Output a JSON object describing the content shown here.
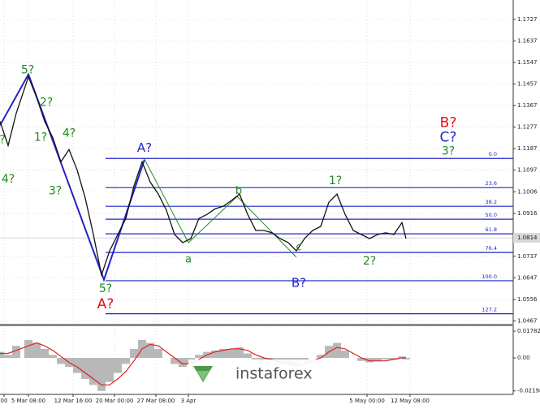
{
  "chart_data": {
    "type": "line",
    "color": "#111111",
    "x": [
      0,
      10,
      20,
      35,
      45,
      55,
      65,
      75,
      85,
      95,
      105,
      115,
      125,
      135,
      145,
      155,
      165,
      175,
      185,
      195,
      205,
      215,
      225,
      235,
      245,
      255,
      265,
      275,
      285,
      295,
      305,
      315,
      325,
      335,
      345,
      355,
      365,
      375,
      385,
      395,
      405,
      415,
      425,
      435,
      445,
      455,
      465,
      475,
      485,
      495,
      500
    ],
    "values": [
      1.1301,
      1.12,
      1.1335,
      1.1487,
      1.1402,
      1.1301,
      1.1233,
      1.1132,
      1.1183,
      1.1098,
      1.098,
      1.0828,
      1.0659,
      1.076,
      1.0828,
      1.0895,
      1.1031,
      1.1132,
      1.1047,
      1.0997,
      1.0929,
      1.0828,
      1.0794,
      1.0811,
      1.0895,
      1.0912,
      1.0936,
      1.0946,
      1.097,
      1.0997,
      1.0912,
      1.0845,
      1.0845,
      1.0835,
      1.0811,
      1.0794,
      1.076,
      1.0811,
      1.0845,
      1.0862,
      1.0963,
      1.0997,
      1.0912,
      1.0845,
      1.0828,
      1.0811,
      1.0828,
      1.0835,
      1.0828,
      1.0878,
      1.0811
    ],
    "xlim": [
      0,
      632
    ],
    "ylim": [
      1.0455,
      1.1808
    ],
    "yticks": [
      1.1727,
      1.1637,
      1.1547,
      1.1457,
      1.1367,
      1.1277,
      1.1187,
      1.1097,
      1.1006,
      1.0916,
      1.0737,
      1.0647,
      1.0556,
      1.0467
    ],
    "xticks": [
      {
        "value": 5,
        "label": "00"
      },
      {
        "value": 35,
        "label": "5 Mar 08:00"
      },
      {
        "value": 90,
        "label": "12 Mar 16:00"
      },
      {
        "value": 141,
        "label": "20 Mar 00:00"
      },
      {
        "value": 192,
        "label": "27 Mar 08:00"
      },
      {
        "value": 232,
        "label": "3 Apr"
      },
      {
        "value": 452,
        "label": "5 May 00:00"
      },
      {
        "value": 505,
        "label": "12 May 08:00"
      }
    ],
    "last_price": 1.0814,
    "fib_color": "#2424c8",
    "fib_start": 130,
    "fib_levels": [
      {
        "label": "0.0",
        "price": 1.1146
      },
      {
        "label": "23.6",
        "price": 1.1024
      },
      {
        "label": "38.2",
        "price": 1.0946
      },
      {
        "label": "50.0",
        "price": 1.0892
      },
      {
        "label": "61.8",
        "price": 1.0831
      },
      {
        "label": "76.4",
        "price": 1.0753
      },
      {
        "label": "100.0",
        "price": 1.0635
      },
      {
        "label": "127.2",
        "price": 1.0497
      }
    ],
    "wave_lines": [
      {
        "color": "#2424c8",
        "x": [
          0,
          35,
          128,
          178
        ],
        "y": [
          1.1284,
          1.1497,
          1.0639,
          1.1142
        ]
      },
      {
        "color": "#2a8a2a",
        "x": [
          178,
          232,
          292,
          365
        ],
        "y": [
          1.1142,
          1.0794,
          1.0987,
          1.0733
        ]
      }
    ],
    "annotations": [
      {
        "text": "?",
        "color": "#1f8a1f",
        "x": 3,
        "y": 1.1223,
        "size": 14
      },
      {
        "text": "4?",
        "color": "#1f8a1f",
        "x": 10,
        "y": 1.1058,
        "size": 14
      },
      {
        "text": "5?",
        "color": "#1f8a1f",
        "x": 34,
        "y": 1.1514,
        "size": 14
      },
      {
        "text": "2?",
        "color": "#1f8a1f",
        "x": 57,
        "y": 1.1379,
        "size": 14
      },
      {
        "text": "1?",
        "color": "#1f8a1f",
        "x": 50,
        "y": 1.1233,
        "size": 14
      },
      {
        "text": "4?",
        "color": "#1f8a1f",
        "x": 85,
        "y": 1.125,
        "size": 14
      },
      {
        "text": "3?",
        "color": "#1f8a1f",
        "x": 68,
        "y": 1.101,
        "size": 14
      },
      {
        "text": "A?",
        "color": "#2424c8",
        "x": 178,
        "y": 1.1189,
        "size": 15
      },
      {
        "text": "b",
        "color": "#1f8a1f",
        "x": 294,
        "y": 1.101,
        "size": 13
      },
      {
        "text": "a",
        "color": "#1f8a1f",
        "x": 232,
        "y": 1.0723,
        "size": 13
      },
      {
        "text": "c",
        "color": "#1f8a1f",
        "x": 368,
        "y": 1.0774,
        "size": 13
      },
      {
        "text": "B?",
        "color": "#2424c8",
        "x": 368,
        "y": 1.0625,
        "size": 15
      },
      {
        "text": "1?",
        "color": "#1f8a1f",
        "x": 413,
        "y": 1.1051,
        "size": 14
      },
      {
        "text": "2?",
        "color": "#1f8a1f",
        "x": 455,
        "y": 1.0716,
        "size": 14
      },
      {
        "text": "5?",
        "color": "#1f8a1f",
        "x": 130,
        "y": 1.0601,
        "size": 14
      },
      {
        "text": "A?",
        "color": "#e01010",
        "x": 130,
        "y": 1.0537,
        "size": 17
      },
      {
        "text": "B?",
        "color": "#e01010",
        "x": 552,
        "y": 1.1294,
        "size": 17
      },
      {
        "text": "C?",
        "color": "#2424c8",
        "x": 552,
        "y": 1.1233,
        "size": 17
      },
      {
        "text": "3?",
        "color": "#1f8a1f",
        "x": 552,
        "y": 1.1176,
        "size": 14
      }
    ],
    "oscillator": {
      "ylim": [
        -0.0243,
        0.0211
      ],
      "yticks": [
        0.01782,
        {
          "value": 0,
          "label": "0.00"
        },
        -0.02198
      ],
      "histogram": {
        "color": "#b8b8b8",
        "values": [
          0.004,
          0.002,
          0.008,
          0.012,
          0.01,
          0.006,
          0.002,
          -0.004,
          -0.006,
          -0.01,
          -0.014,
          -0.018,
          -0.022,
          -0.016,
          -0.01,
          -0.004,
          0.006,
          0.012,
          0.01,
          0.006,
          0.0,
          -0.004,
          -0.006,
          -0.004,
          0.002,
          0.004,
          0.005,
          0.006,
          0.006,
          0.007,
          0.003,
          -0.001,
          -0.002,
          -0.002,
          -0.004,
          -0.005,
          -0.006,
          -0.003,
          0.0,
          0.002,
          0.008,
          0.01,
          0.005,
          0.0,
          -0.002,
          -0.003,
          -0.002,
          -0.001,
          -0.001,
          0.001,
          -0.001
        ]
      },
      "signal": {
        "color": "#e02020",
        "values": [
          0.003,
          0.003,
          0.005,
          0.008,
          0.01,
          0.008,
          0.005,
          0.001,
          -0.003,
          -0.006,
          -0.01,
          -0.014,
          -0.018,
          -0.018,
          -0.014,
          -0.009,
          -0.002,
          0.006,
          0.009,
          0.008,
          0.004,
          0.0,
          -0.004,
          -0.004,
          -0.001,
          0.002,
          0.004,
          0.005,
          0.006,
          0.006,
          0.005,
          0.002,
          0.0,
          -0.001,
          -0.003,
          -0.004,
          -0.005,
          -0.004,
          -0.002,
          0.0,
          0.004,
          0.007,
          0.006,
          0.003,
          0.0,
          -0.002,
          -0.002,
          -0.002,
          -0.001,
          0.0,
          0.0
        ]
      }
    },
    "watermark": "instaforex"
  }
}
